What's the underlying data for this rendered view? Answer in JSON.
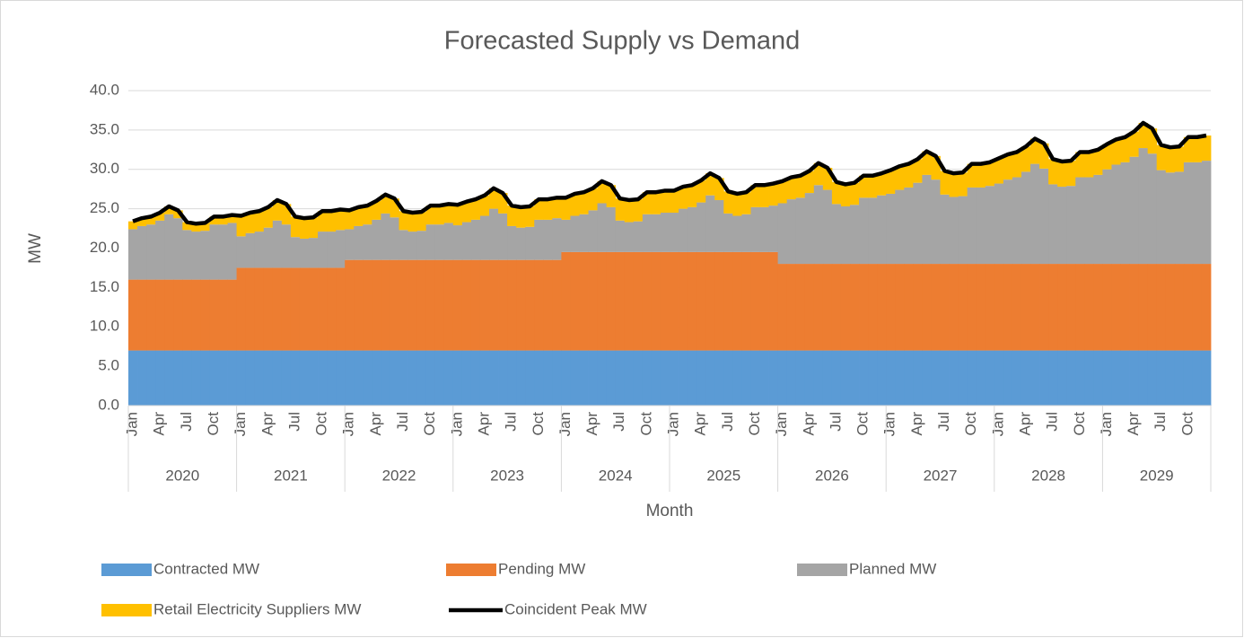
{
  "chart_data": {
    "type": "stacked_area",
    "title": "Forecasted Supply vs Demand",
    "x_label": "Month",
    "y_label": "MW",
    "categories": [
      "Jan",
      null,
      null,
      "Apr",
      null,
      null,
      "Jul",
      null,
      null,
      "Oct",
      null,
      null,
      "Jan",
      null,
      null,
      "Apr",
      null,
      null,
      "Jul",
      null,
      null,
      "Oct",
      null,
      null,
      "Jan",
      null,
      null,
      "Apr",
      null,
      null,
      "Jul",
      null,
      null,
      "Oct",
      null,
      null,
      "Jan",
      null,
      null,
      "Apr",
      null,
      null,
      "Jul",
      null,
      null,
      "Oct",
      null,
      null,
      "Jan",
      null,
      null,
      "Apr",
      null,
      null,
      "Jul",
      null,
      null,
      "Oct",
      null,
      null,
      "Jan",
      null,
      null,
      "Apr",
      null,
      null,
      "Jul",
      null,
      null,
      "Oct",
      null,
      null,
      "Jan",
      null,
      null,
      "Apr",
      null,
      null,
      "Jul",
      null,
      null,
      "Oct",
      null,
      null,
      "Jan",
      null,
      null,
      "Apr",
      null,
      null,
      "Jul",
      null,
      null,
      "Oct",
      null,
      null,
      "Jan",
      null,
      null,
      "Apr",
      null,
      null,
      "Jul",
      null,
      null,
      "Oct",
      null,
      null,
      "Jan",
      null,
      null,
      "Apr",
      null,
      null,
      "Jul",
      null,
      null,
      "Oct",
      null,
      null
    ],
    "groups": [
      "2020",
      "2021",
      "2022",
      "2023",
      "2024",
      "2025",
      "2026",
      "2027",
      "2028",
      "2029"
    ],
    "ylim": [
      0,
      40
    ],
    "yticks": [
      {
        "value": 0,
        "label": "0.0"
      },
      {
        "value": 5,
        "label": "5.0"
      },
      {
        "value": 10,
        "label": "10.0"
      },
      {
        "value": 15,
        "label": "15.0"
      },
      {
        "value": 20,
        "label": "20.0"
      },
      {
        "value": 25,
        "label": "25.0"
      },
      {
        "value": 30,
        "label": "30.0"
      },
      {
        "value": 35,
        "label": "35.0"
      },
      {
        "value": 40,
        "label": "40.0"
      }
    ],
    "grid": true,
    "legend": "bottom",
    "series": [
      {
        "name": "Contracted MW",
        "color": "#5b9bd5",
        "values": [
          7,
          7,
          7,
          7,
          7,
          7,
          7,
          7,
          7,
          7,
          7,
          7,
          7,
          7,
          7,
          7,
          7,
          7,
          7,
          7,
          7,
          7,
          7,
          7,
          7,
          7,
          7,
          7,
          7,
          7,
          7,
          7,
          7,
          7,
          7,
          7,
          7,
          7,
          7,
          7,
          7,
          7,
          7,
          7,
          7,
          7,
          7,
          7,
          7,
          7,
          7,
          7,
          7,
          7,
          7,
          7,
          7,
          7,
          7,
          7,
          7,
          7,
          7,
          7,
          7,
          7,
          7,
          7,
          7,
          7,
          7,
          7,
          7,
          7,
          7,
          7,
          7,
          7,
          7,
          7,
          7,
          7,
          7,
          7,
          7,
          7,
          7,
          7,
          7,
          7,
          7,
          7,
          7,
          7,
          7,
          7,
          7,
          7,
          7,
          7,
          7,
          7,
          7,
          7,
          7,
          7,
          7,
          7,
          7,
          7,
          7,
          7,
          7,
          7,
          7,
          7,
          7,
          7,
          7,
          7
        ]
      },
      {
        "name": "Pending MW",
        "color": "#ed7d31",
        "values": [
          9,
          9,
          9,
          9,
          9,
          9,
          9,
          9,
          9,
          9,
          9,
          9,
          10.5,
          10.5,
          10.5,
          10.5,
          10.5,
          10.5,
          10.5,
          10.5,
          10.5,
          10.5,
          10.5,
          10.5,
          11.5,
          11.5,
          11.5,
          11.5,
          11.5,
          11.5,
          11.5,
          11.5,
          11.5,
          11.5,
          11.5,
          11.5,
          11.5,
          11.5,
          11.5,
          11.5,
          11.5,
          11.5,
          11.5,
          11.5,
          11.5,
          11.5,
          11.5,
          11.5,
          12.5,
          12.5,
          12.5,
          12.5,
          12.5,
          12.5,
          12.5,
          12.5,
          12.5,
          12.5,
          12.5,
          12.5,
          12.5,
          12.5,
          12.5,
          12.5,
          12.5,
          12.5,
          12.5,
          12.5,
          12.5,
          12.5,
          12.5,
          12.5,
          11,
          11,
          11,
          11,
          11,
          11,
          11,
          11,
          11,
          11,
          11,
          11,
          11,
          11,
          11,
          11,
          11,
          11,
          11,
          11,
          11,
          11,
          11,
          11,
          11,
          11,
          11,
          11,
          11,
          11,
          11,
          11,
          11,
          11,
          11,
          11,
          11,
          11,
          11,
          11,
          11,
          11,
          11,
          11,
          11,
          11,
          11,
          11
        ]
      },
      {
        "name": "Planned MW",
        "color": "#a5a5a5",
        "values": [
          6.4,
          6.8,
          7.0,
          7.5,
          8.3,
          7.8,
          6.3,
          6.1,
          6.2,
          7.0,
          7.0,
          7.2,
          4.0,
          4.4,
          4.6,
          5.1,
          6.0,
          5.5,
          3.9,
          3.7,
          3.8,
          4.6,
          4.6,
          4.8,
          3.9,
          4.3,
          4.5,
          5.1,
          5.9,
          5.4,
          3.8,
          3.6,
          3.7,
          4.5,
          4.5,
          4.7,
          4.4,
          4.8,
          5.1,
          5.6,
          6.5,
          5.9,
          4.3,
          4.1,
          4.2,
          5.1,
          5.1,
          5.3,
          4.1,
          4.6,
          4.8,
          5.3,
          6.2,
          5.7,
          4.0,
          3.8,
          3.9,
          4.8,
          4.8,
          5.0,
          5.0,
          5.5,
          5.7,
          6.3,
          7.2,
          6.6,
          4.9,
          4.6,
          4.8,
          5.7,
          5.7,
          5.9,
          7.7,
          8.2,
          8.4,
          9.0,
          10.0,
          9.4,
          7.6,
          7.3,
          7.5,
          8.4,
          8.4,
          8.7,
          8.9,
          9.4,
          9.7,
          10.3,
          11.3,
          10.7,
          8.8,
          8.5,
          8.6,
          9.7,
          9.7,
          9.9,
          10.2,
          10.7,
          11.0,
          11.7,
          12.7,
          12.1,
          10.1,
          9.8,
          9.9,
          11.0,
          11.0,
          11.3,
          12.0,
          12.6,
          12.9,
          13.6,
          14.7,
          14.0,
          11.9,
          11.6,
          11.7,
          12.9,
          12.9,
          13.1
        ]
      },
      {
        "name": "Retail Electricity Suppliers MW",
        "color": "#ffc000",
        "values": [
          1.0,
          1.0,
          1.0,
          1.0,
          1.0,
          1.0,
          1.0,
          1.0,
          1.0,
          1.0,
          1.0,
          1.0,
          2.6,
          2.6,
          2.6,
          2.6,
          2.6,
          2.6,
          2.6,
          2.6,
          2.6,
          2.6,
          2.6,
          2.6,
          2.4,
          2.4,
          2.4,
          2.4,
          2.4,
          2.4,
          2.4,
          2.4,
          2.4,
          2.4,
          2.4,
          2.4,
          2.6,
          2.6,
          2.6,
          2.6,
          2.6,
          2.6,
          2.6,
          2.6,
          2.6,
          2.6,
          2.6,
          2.6,
          2.8,
          2.8,
          2.8,
          2.8,
          2.8,
          2.8,
          2.8,
          2.8,
          2.8,
          2.8,
          2.8,
          2.8,
          2.8,
          2.8,
          2.8,
          2.8,
          2.8,
          2.8,
          2.8,
          2.8,
          2.8,
          2.8,
          2.8,
          2.8,
          2.8,
          2.8,
          2.8,
          2.8,
          2.8,
          2.8,
          2.8,
          2.8,
          2.8,
          2.8,
          2.8,
          2.8,
          3.0,
          3.0,
          3.0,
          3.0,
          3.0,
          3.0,
          3.0,
          3.0,
          3.0,
          3.0,
          3.0,
          3.0,
          3.2,
          3.2,
          3.2,
          3.2,
          3.2,
          3.2,
          3.2,
          3.2,
          3.2,
          3.2,
          3.2,
          3.2,
          3.2,
          3.2,
          3.2,
          3.2,
          3.2,
          3.2,
          3.2,
          3.2,
          3.2,
          3.2,
          3.2,
          3.2
        ]
      },
      {
        "name": "Coincident Peak MW",
        "color": "#000000",
        "type": "line",
        "values": [
          23.4,
          23.8,
          24.0,
          24.5,
          25.3,
          24.8,
          23.3,
          23.1,
          23.2,
          24.0,
          24.0,
          24.2,
          24.1,
          24.5,
          24.7,
          25.2,
          26.1,
          25.6,
          24.0,
          23.8,
          23.9,
          24.7,
          24.7,
          24.9,
          24.8,
          25.2,
          25.4,
          26.0,
          26.8,
          26.3,
          24.7,
          24.5,
          24.6,
          25.4,
          25.4,
          25.6,
          25.5,
          25.9,
          26.2,
          26.7,
          27.6,
          27.0,
          25.4,
          25.2,
          25.3,
          26.2,
          26.2,
          26.4,
          26.4,
          26.9,
          27.1,
          27.6,
          28.5,
          28.0,
          26.3,
          26.1,
          26.2,
          27.1,
          27.1,
          27.3,
          27.3,
          27.8,
          28.0,
          28.6,
          29.5,
          28.9,
          27.2,
          26.9,
          27.1,
          28.0,
          28.0,
          28.2,
          28.5,
          29.0,
          29.2,
          29.8,
          30.8,
          30.2,
          28.4,
          28.1,
          28.3,
          29.2,
          29.2,
          29.5,
          29.9,
          30.4,
          30.7,
          31.3,
          32.3,
          31.7,
          29.8,
          29.5,
          29.6,
          30.7,
          30.7,
          30.9,
          31.4,
          31.9,
          32.2,
          32.9,
          33.9,
          33.3,
          31.3,
          31.0,
          31.1,
          32.2,
          32.2,
          32.5,
          33.2,
          33.8,
          34.1,
          34.8,
          35.9,
          35.2,
          33.1,
          32.8,
          32.9,
          34.1,
          34.1,
          34.3
        ]
      }
    ]
  }
}
